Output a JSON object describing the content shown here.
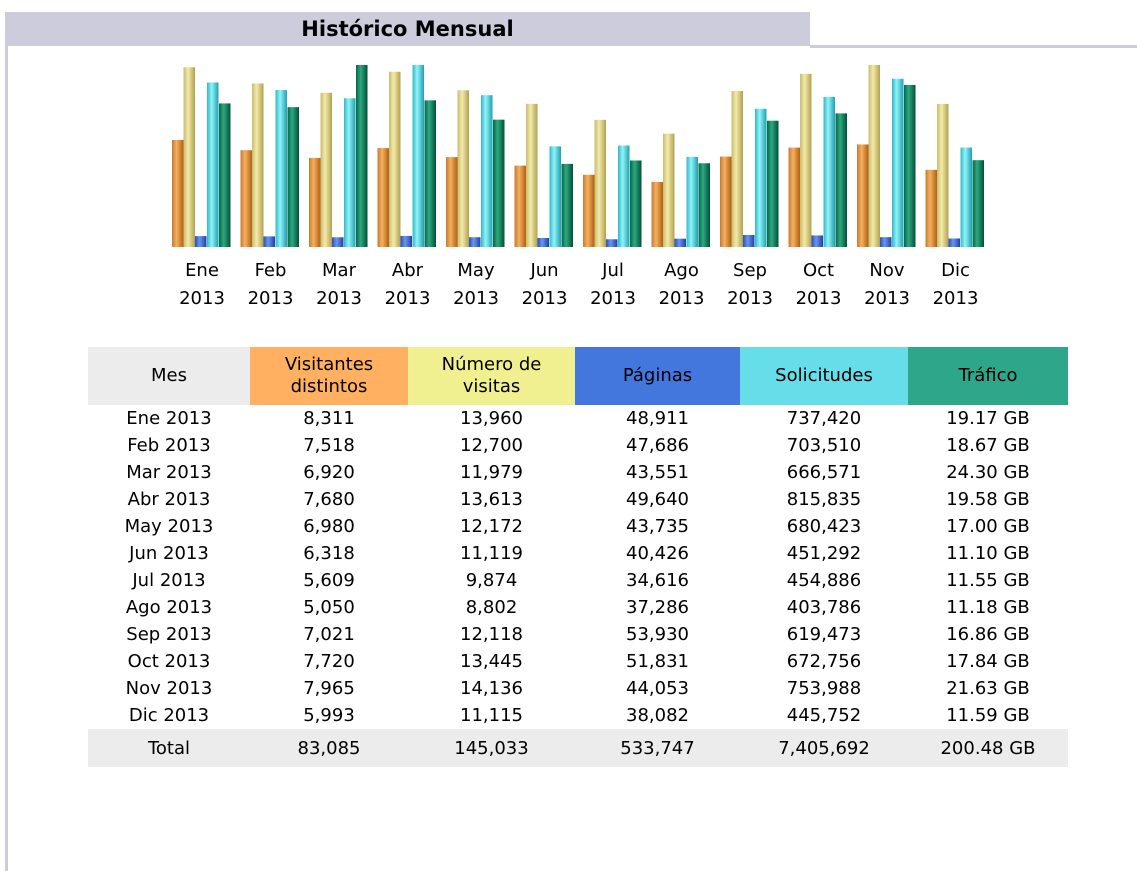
{
  "header": {
    "title": "Histórico Mensual"
  },
  "chart": {
    "labels": [
      [
        "Ene",
        "2013"
      ],
      [
        "Feb",
        "2013"
      ],
      [
        "Mar",
        "2013"
      ],
      [
        "Abr",
        "2013"
      ],
      [
        "May",
        "2013"
      ],
      [
        "Jun",
        "2013"
      ],
      [
        "Jul",
        "2013"
      ],
      [
        "Ago",
        "2013"
      ],
      [
        "Sep",
        "2013"
      ],
      [
        "Oct",
        "2013"
      ],
      [
        "Nov",
        "2013"
      ],
      [
        "Dic",
        "2013"
      ]
    ]
  },
  "table": {
    "headers": [
      [
        "Mes"
      ],
      [
        "Visitantes",
        "distintos"
      ],
      [
        "Número de",
        "visitas"
      ],
      [
        "Páginas"
      ],
      [
        "Solicitudes"
      ],
      [
        "Tráfico"
      ]
    ],
    "rows": [
      [
        "Ene 2013",
        "8,311",
        "13,960",
        "48,911",
        "737,420",
        "19.17 GB"
      ],
      [
        "Feb 2013",
        "7,518",
        "12,700",
        "47,686",
        "703,510",
        "18.67 GB"
      ],
      [
        "Mar 2013",
        "6,920",
        "11,979",
        "43,551",
        "666,571",
        "24.30 GB"
      ],
      [
        "Abr 2013",
        "7,680",
        "13,613",
        "49,640",
        "815,835",
        "19.58 GB"
      ],
      [
        "May 2013",
        "6,980",
        "12,172",
        "43,735",
        "680,423",
        "17.00 GB"
      ],
      [
        "Jun 2013",
        "6,318",
        "11,119",
        "40,426",
        "451,292",
        "11.10 GB"
      ],
      [
        "Jul 2013",
        "5,609",
        "9,874",
        "34,616",
        "454,886",
        "11.55 GB"
      ],
      [
        "Ago 2013",
        "5,050",
        "8,802",
        "37,286",
        "403,786",
        "11.18 GB"
      ],
      [
        "Sep 2013",
        "7,021",
        "12,118",
        "53,930",
        "619,473",
        "16.86 GB"
      ],
      [
        "Oct 2013",
        "7,720",
        "13,445",
        "51,831",
        "672,756",
        "17.84 GB"
      ],
      [
        "Nov 2013",
        "7,965",
        "14,136",
        "44,053",
        "753,988",
        "21.63 GB"
      ],
      [
        "Dic 2013",
        "5,993",
        "11,115",
        "38,082",
        "445,752",
        "11.59 GB"
      ]
    ],
    "total": [
      "Total",
      "83,085",
      "145,033",
      "533,747",
      "7,405,692",
      "200.48 GB"
    ]
  }
}
